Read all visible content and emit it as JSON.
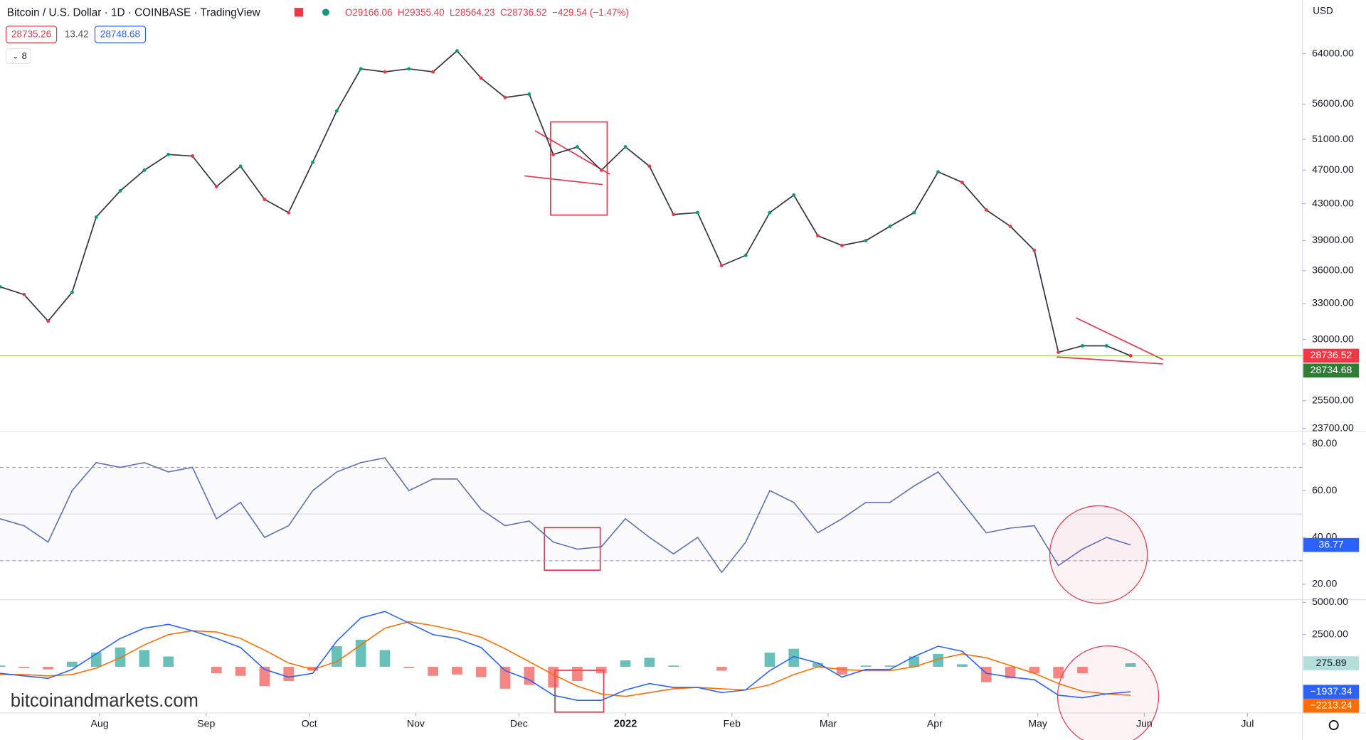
{
  "header": {
    "bid": 28735.26,
    "spread": 13.42,
    "ask": 28748.68,
    "indicators": 8,
    "currency": "USD",
    "watermark": "bitcoinandmarkets.com"
  },
  "chart_data": [
    {
      "type": "price",
      "title": "Bitcoin / U.S. Dollar · 1D · COINBASE · TradingView",
      "ohlc": [
        "O29166.06",
        "H29355.40",
        "L28564.23",
        "C28736.52",
        "−429.54 (−1.47%)"
      ],
      "x": [
        -29,
        -22,
        -15,
        -8,
        -1,
        6,
        13,
        20,
        27,
        34,
        41,
        48,
        55,
        62,
        69,
        76,
        83,
        90,
        97,
        104,
        111,
        118,
        125,
        132,
        139,
        146,
        153,
        160,
        167,
        174,
        181,
        188,
        195,
        202,
        209,
        216,
        223,
        230,
        237,
        244,
        251,
        258,
        265,
        272,
        279,
        286,
        293,
        300
      ],
      "values": [
        34500,
        33800,
        31500,
        34000,
        41500,
        44500,
        47000,
        49000,
        48800,
        45000,
        47500,
        43500,
        42000,
        48000,
        55000,
        61500,
        61000,
        61500,
        61000,
        64500,
        60000,
        57000,
        57500,
        49000,
        50000,
        47000,
        50000,
        47500,
        41800,
        42000,
        36500,
        37500,
        42000,
        44000,
        39500,
        38500,
        39000,
        40500,
        42000,
        46800,
        45500,
        42300,
        40500,
        38000,
        29000,
        29500,
        29500,
        28736.52
      ],
      "color": "#2f3640",
      "log_scale": true,
      "ylim": [
        23540,
        73800
      ],
      "yticks": [
        {
          "value": 64000,
          "label": "64000.00"
        },
        {
          "value": 56000,
          "label": "56000.00"
        },
        {
          "value": 51000,
          "label": "51000.00"
        },
        {
          "value": 47000,
          "label": "47000.00"
        },
        {
          "value": 43000,
          "label": "43000.00"
        },
        {
          "value": 39000,
          "label": "39000.00"
        },
        {
          "value": 36000,
          "label": "36000.00"
        },
        {
          "value": 33000,
          "label": "33000.00"
        },
        {
          "value": 30000,
          "label": "30000.00"
        },
        {
          "value": 25500,
          "label": "25500.00"
        },
        {
          "value": 23700,
          "label": "23700.00"
        }
      ],
      "xlim": [
        -29,
        350
      ],
      "xticks": [
        {
          "value": 0,
          "label": "Aug"
        },
        {
          "value": 31,
          "label": "Sep"
        },
        {
          "value": 61,
          "label": "Oct"
        },
        {
          "value": 92,
          "label": "Nov"
        },
        {
          "value": 122,
          "label": "Dec"
        },
        {
          "value": 153,
          "label": "2022"
        },
        {
          "value": 184,
          "label": "Feb"
        },
        {
          "value": 212,
          "label": "Mar"
        },
        {
          "value": 243,
          "label": "Apr"
        },
        {
          "value": 273,
          "label": "May"
        },
        {
          "value": 304,
          "label": "Jun"
        },
        {
          "value": 334,
          "label": "Jul"
        }
      ],
      "last_price": 28736.52,
      "close_line": 28734.68
    },
    {
      "type": "rsi",
      "values": [
        48,
        45,
        38,
        60,
        72,
        70,
        72,
        68,
        70,
        48,
        55,
        40,
        45,
        60,
        68,
        72,
        74,
        60,
        65,
        65,
        52,
        45,
        47,
        38,
        35,
        36,
        48,
        40,
        33,
        40,
        25,
        38,
        60,
        55,
        42,
        48,
        55,
        55,
        62,
        68,
        55,
        42,
        44,
        45,
        28,
        35,
        40,
        36.77
      ],
      "color": "#5b6fb5",
      "ylim": [
        13.7,
        84.8
      ],
      "yticks": [
        {
          "value": 20,
          "label": "20.00"
        },
        {
          "value": 40,
          "label": "40.00"
        },
        {
          "value": 60,
          "label": "60.00"
        },
        {
          "value": 80,
          "label": "80.00"
        }
      ],
      "levels": [
        70,
        50,
        30
      ],
      "last_value": 36.77
    },
    {
      "type": "macd",
      "macd_values": [
        -500,
        -700,
        -900,
        -200,
        1000,
        2200,
        3000,
        3300,
        2800,
        2200,
        1500,
        -200,
        -800,
        -500,
        2000,
        3800,
        4300,
        3400,
        2500,
        2200,
        1500,
        -300,
        -1000,
        -2200,
        -2600,
        -2600,
        -1800,
        -1300,
        -1600,
        -1600,
        -2000,
        -1800,
        -300,
        800,
        300,
        -800,
        -200,
        -200,
        800,
        1600,
        1200,
        -500,
        -800,
        -1000,
        -2200,
        -2400,
        -2100,
        -1937.34
      ],
      "signal_values": [
        -600,
        -600,
        -700,
        -600,
        -100,
        700,
        1700,
        2500,
        2800,
        2700,
        2200,
        1300,
        300,
        -200,
        400,
        1700,
        3000,
        3500,
        3200,
        2800,
        2300,
        1400,
        400,
        -600,
        -1500,
        -2100,
        -2300,
        -2000,
        -1700,
        -1600,
        -1700,
        -1800,
        -1400,
        -600,
        0,
        -200,
        -300,
        -300,
        0,
        600,
        1000,
        700,
        100,
        -500,
        -1300,
        -1900,
        -2100,
        -2213.24
      ],
      "histogram_values": [
        100,
        -100,
        -200,
        400,
        1100,
        1500,
        1300,
        800,
        0,
        -500,
        -700,
        -1500,
        -1100,
        -300,
        1600,
        2100,
        1300,
        -100,
        -700,
        -600,
        -800,
        -1700,
        -1400,
        -1600,
        -1100,
        -500,
        500,
        700,
        100,
        0,
        -300,
        0,
        1100,
        1400,
        300,
        -600,
        100,
        100,
        800,
        1000,
        200,
        -1200,
        -900,
        -500,
        -900,
        -500,
        0,
        275.89
      ],
      "macd_color": "#2962ff",
      "signal_color": "#ff6d00",
      "up_color": "#26a69a",
      "down_color": "#ef5350",
      "ylim": [
        -3514,
        5135
      ],
      "yticks": [
        {
          "value": 5000,
          "label": "5000.00"
        },
        {
          "value": 2500,
          "label": "2500.00"
        }
      ],
      "last_histogram": 275.89,
      "last_macd": -1937.34,
      "last_macd_label": "−1937.34",
      "last_signal": -2213.24,
      "last_signal_label": "−2213.24"
    }
  ]
}
